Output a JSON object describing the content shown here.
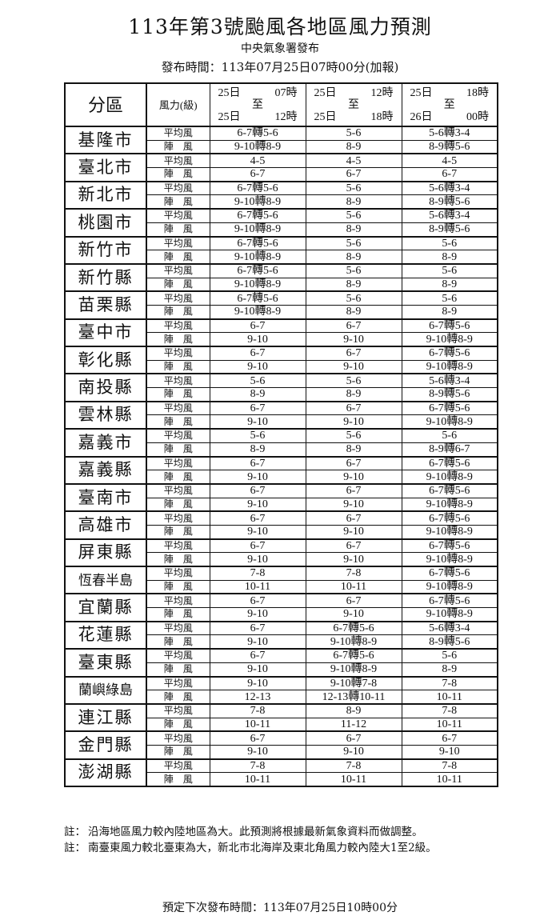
{
  "title": "113年第3號颱風各地區風力預測",
  "publisher": "中央氣象署發布",
  "publish_time": "發布時間：113年07月25日07時00分(加報)",
  "table": {
    "header_region": "分區",
    "header_kind": "風力(級)",
    "periods": [
      {
        "from_day": "25日",
        "from_hour": "07時",
        "to": "至",
        "to_day": "25日",
        "to_hour": "12時"
      },
      {
        "from_day": "25日",
        "from_hour": "12時",
        "to": "至",
        "to_day": "25日",
        "to_hour": "18時"
      },
      {
        "from_day": "25日",
        "from_hour": "18時",
        "to": "至",
        "to_day": "26日",
        "to_hour": "00時"
      }
    ],
    "avg_label": "平均風",
    "gust_label": "陣　風",
    "regions": [
      {
        "name": "基隆市",
        "avg": [
          "6-7轉5-6",
          "5-6",
          "5-6轉3-4"
        ],
        "gust": [
          "9-10轉8-9",
          "8-9",
          "8-9轉5-6"
        ]
      },
      {
        "name": "臺北市",
        "avg": [
          "4-5",
          "4-5",
          "4-5"
        ],
        "gust": [
          "6-7",
          "6-7",
          "6-7"
        ]
      },
      {
        "name": "新北市",
        "avg": [
          "6-7轉5-6",
          "5-6",
          "5-6轉3-4"
        ],
        "gust": [
          "9-10轉8-9",
          "8-9",
          "8-9轉5-6"
        ]
      },
      {
        "name": "桃園市",
        "avg": [
          "6-7轉5-6",
          "5-6",
          "5-6轉3-4"
        ],
        "gust": [
          "9-10轉8-9",
          "8-9",
          "8-9轉5-6"
        ]
      },
      {
        "name": "新竹市",
        "avg": [
          "6-7轉5-6",
          "5-6",
          "5-6"
        ],
        "gust": [
          "9-10轉8-9",
          "8-9",
          "8-9"
        ]
      },
      {
        "name": "新竹縣",
        "avg": [
          "6-7轉5-6",
          "5-6",
          "5-6"
        ],
        "gust": [
          "9-10轉8-9",
          "8-9",
          "8-9"
        ]
      },
      {
        "name": "苗栗縣",
        "avg": [
          "6-7轉5-6",
          "5-6",
          "5-6"
        ],
        "gust": [
          "9-10轉8-9",
          "8-9",
          "8-9"
        ]
      },
      {
        "name": "臺中市",
        "avg": [
          "6-7",
          "6-7",
          "6-7轉5-6"
        ],
        "gust": [
          "9-10",
          "9-10",
          "9-10轉8-9"
        ]
      },
      {
        "name": "彰化縣",
        "avg": [
          "6-7",
          "6-7",
          "6-7轉5-6"
        ],
        "gust": [
          "9-10",
          "9-10",
          "9-10轉8-9"
        ]
      },
      {
        "name": "南投縣",
        "avg": [
          "5-6",
          "5-6",
          "5-6轉3-4"
        ],
        "gust": [
          "8-9",
          "8-9",
          "8-9轉5-6"
        ]
      },
      {
        "name": "雲林縣",
        "avg": [
          "6-7",
          "6-7",
          "6-7轉5-6"
        ],
        "gust": [
          "9-10",
          "9-10",
          "9-10轉8-9"
        ]
      },
      {
        "name": "嘉義市",
        "avg": [
          "5-6",
          "5-6",
          "5-6"
        ],
        "gust": [
          "8-9",
          "8-9",
          "8-9轉6-7"
        ]
      },
      {
        "name": "嘉義縣",
        "avg": [
          "6-7",
          "6-7",
          "6-7轉5-6"
        ],
        "gust": [
          "9-10",
          "9-10",
          "9-10轉8-9"
        ]
      },
      {
        "name": "臺南市",
        "avg": [
          "6-7",
          "6-7",
          "6-7轉5-6"
        ],
        "gust": [
          "9-10",
          "9-10",
          "9-10轉8-9"
        ]
      },
      {
        "name": "高雄市",
        "avg": [
          "6-7",
          "6-7",
          "6-7轉5-6"
        ],
        "gust": [
          "9-10",
          "9-10",
          "9-10轉8-9"
        ]
      },
      {
        "name": "屏東縣",
        "avg": [
          "6-7",
          "6-7",
          "6-7轉5-6"
        ],
        "gust": [
          "9-10",
          "9-10",
          "9-10轉8-9"
        ]
      },
      {
        "name": "恆春半島",
        "avg": [
          "7-8",
          "7-8",
          "6-7轉5-6"
        ],
        "gust": [
          "10-11",
          "10-11",
          "9-10轉8-9"
        ]
      },
      {
        "name": "宜蘭縣",
        "avg": [
          "6-7",
          "6-7",
          "6-7轉5-6"
        ],
        "gust": [
          "9-10",
          "9-10",
          "9-10轉8-9"
        ]
      },
      {
        "name": "花蓮縣",
        "avg": [
          "6-7",
          "6-7轉5-6",
          "5-6轉3-4"
        ],
        "gust": [
          "9-10",
          "9-10轉8-9",
          "8-9轉5-6"
        ]
      },
      {
        "name": "臺東縣",
        "avg": [
          "6-7",
          "6-7轉5-6",
          "5-6"
        ],
        "gust": [
          "9-10",
          "9-10轉8-9",
          "8-9"
        ]
      },
      {
        "name": "蘭嶼綠島",
        "avg": [
          "9-10",
          "9-10轉7-8",
          "7-8"
        ],
        "gust": [
          "12-13",
          "12-13轉10-11",
          "10-11"
        ]
      },
      {
        "name": "連江縣",
        "avg": [
          "7-8",
          "8-9",
          "7-8"
        ],
        "gust": [
          "10-11",
          "11-12",
          "10-11"
        ]
      },
      {
        "name": "金門縣",
        "avg": [
          "6-7",
          "6-7",
          "6-7"
        ],
        "gust": [
          "9-10",
          "9-10",
          "9-10"
        ]
      },
      {
        "name": "澎湖縣",
        "avg": [
          "7-8",
          "7-8",
          "7-8"
        ],
        "gust": [
          "10-11",
          "10-11",
          "10-11"
        ]
      }
    ]
  },
  "notes": [
    {
      "label": "註：",
      "text": "沿海地區風力較內陸地區為大。此預測將根據最新氣象資料而做調整。"
    },
    {
      "label": "註：",
      "text": "南臺東風力較北臺東為大，新北市北海岸及東北角風力較內陸大1至2級。"
    }
  ],
  "next_release": "預定下次發布時間：113年07月25日10時00分"
}
